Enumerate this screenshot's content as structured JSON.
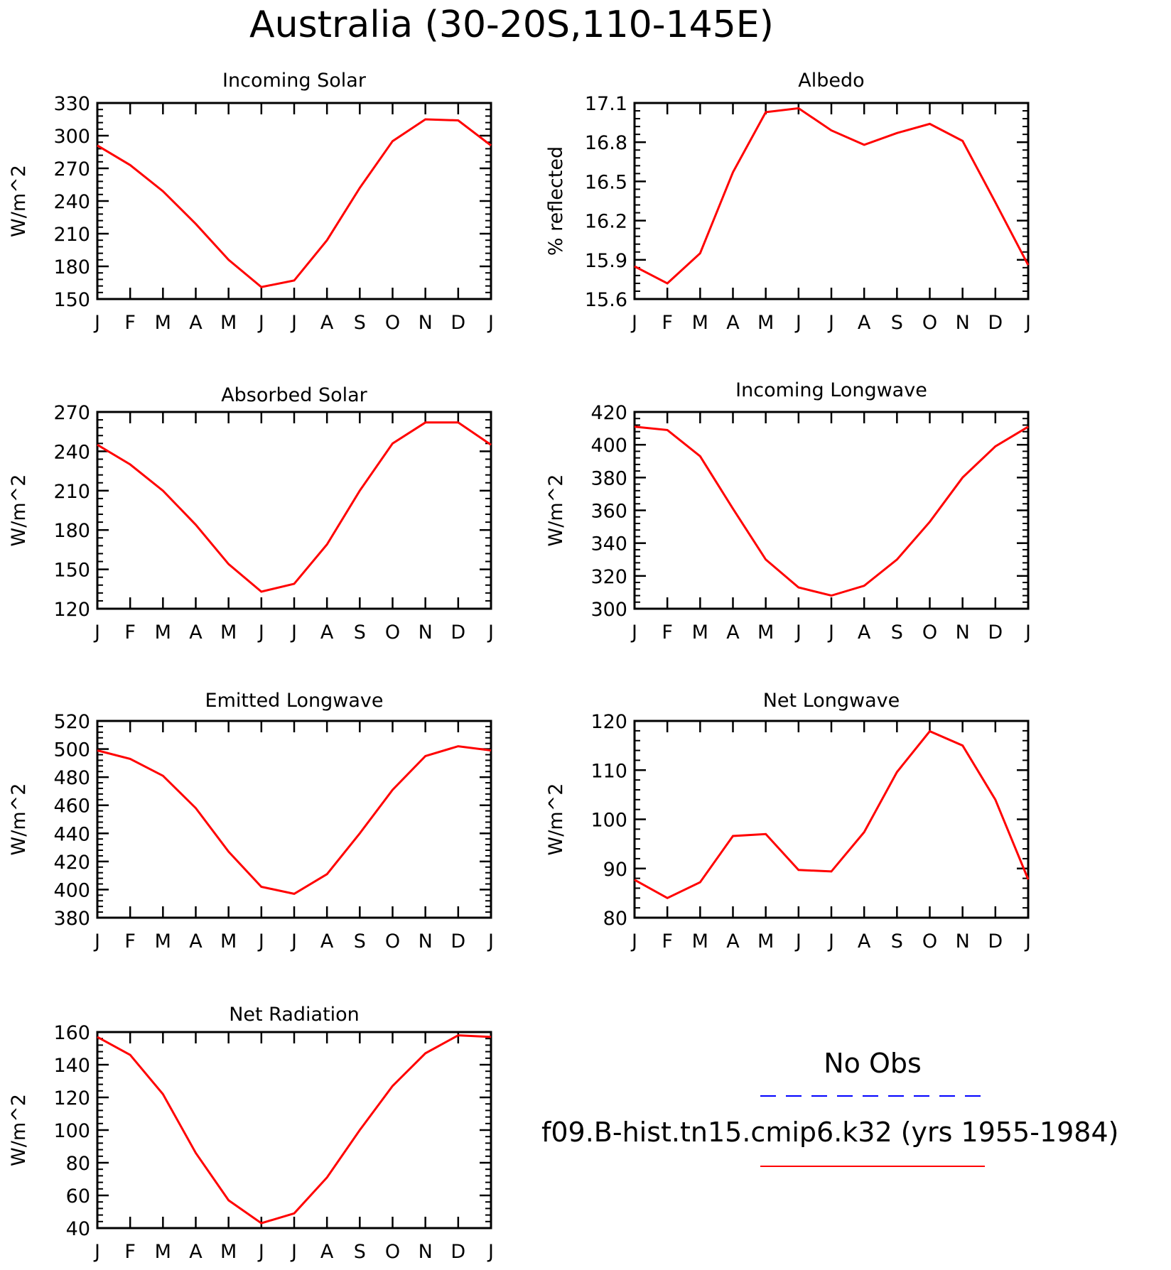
{
  "title": "Australia (30-20S,110-145E)",
  "colors": {
    "model": "#ff0000",
    "obs": "#0000ff",
    "axis": "#000000"
  },
  "legend": {
    "obs_label": "No Obs",
    "model_label": "f09.B-hist.tn15.cmip6.k32 (yrs 1955-1984)"
  },
  "chart_data": [
    {
      "type": "line",
      "title": "Incoming Solar",
      "ylabel": "W/m^2",
      "categories": [
        "J",
        "F",
        "M",
        "A",
        "M",
        "J",
        "J",
        "A",
        "S",
        "O",
        "N",
        "D",
        "J"
      ],
      "ylim": [
        150,
        330
      ],
      "yticks": [
        150,
        180,
        210,
        240,
        270,
        300,
        330
      ],
      "series": [
        {
          "values": [
            291,
            273,
            249,
            219,
            186,
            161,
            167,
            204,
            252,
            295,
            315,
            314,
            291
          ]
        }
      ]
    },
    {
      "type": "line",
      "title": "Albedo",
      "ylabel": "% reflected",
      "categories": [
        "J",
        "F",
        "M",
        "A",
        "M",
        "J",
        "J",
        "A",
        "S",
        "O",
        "N",
        "D",
        "J"
      ],
      "ylim": [
        15.6,
        17.1
      ],
      "yticks": [
        "15.6",
        "15.9",
        "16.2",
        "16.5",
        "16.8",
        "17.1"
      ],
      "series": [
        {
          "values": [
            15.85,
            15.72,
            15.95,
            16.57,
            17.03,
            17.06,
            16.89,
            16.78,
            16.87,
            16.94,
            16.81,
            16.34,
            15.86
          ]
        }
      ]
    },
    {
      "type": "line",
      "title": "Absorbed Solar",
      "ylabel": "W/m^2",
      "categories": [
        "J",
        "F",
        "M",
        "A",
        "M",
        "J",
        "J",
        "A",
        "S",
        "O",
        "N",
        "D",
        "J"
      ],
      "ylim": [
        120,
        270
      ],
      "yticks": [
        120,
        150,
        180,
        210,
        240,
        270
      ],
      "series": [
        {
          "values": [
            245,
            230,
            210,
            184,
            154,
            133,
            139,
            169,
            210,
            246,
            262,
            262,
            245
          ]
        }
      ]
    },
    {
      "type": "line",
      "title": "Incoming Longwave",
      "ylabel": "W/m^2",
      "categories": [
        "J",
        "F",
        "M",
        "A",
        "M",
        "J",
        "J",
        "A",
        "S",
        "O",
        "N",
        "D",
        "J"
      ],
      "ylim": [
        300,
        420
      ],
      "yticks": [
        300,
        320,
        340,
        360,
        380,
        400,
        420
      ],
      "series": [
        {
          "values": [
            411,
            409,
            393,
            361,
            330,
            313,
            308,
            314,
            330,
            353,
            380,
            399,
            411
          ]
        }
      ]
    },
    {
      "type": "line",
      "title": "Emitted Longwave",
      "ylabel": "W/m^2",
      "categories": [
        "J",
        "F",
        "M",
        "A",
        "M",
        "J",
        "J",
        "A",
        "S",
        "O",
        "N",
        "D",
        "J"
      ],
      "ylim": [
        380,
        520
      ],
      "yticks": [
        380,
        400,
        420,
        440,
        460,
        480,
        500,
        520
      ],
      "series": [
        {
          "values": [
            499,
            493,
            481,
            458,
            427,
            402,
            397,
            411,
            440,
            471,
            495,
            502,
            499
          ]
        }
      ]
    },
    {
      "type": "line",
      "title": "Net Longwave",
      "ylabel": "W/m^2",
      "categories": [
        "J",
        "F",
        "M",
        "A",
        "M",
        "J",
        "J",
        "A",
        "S",
        "O",
        "N",
        "D",
        "J"
      ],
      "ylim": [
        80,
        120
      ],
      "yticks": [
        80,
        90,
        100,
        110,
        120
      ],
      "series": [
        {
          "values": [
            87.7,
            84,
            87.2,
            96.6,
            97,
            89.7,
            89.4,
            97.4,
            109.6,
            117.9,
            115,
            104,
            87.8
          ]
        }
      ]
    },
    {
      "type": "line",
      "title": "Net Radiation",
      "ylabel": "W/m^2",
      "categories": [
        "J",
        "F",
        "M",
        "A",
        "M",
        "J",
        "J",
        "A",
        "S",
        "O",
        "N",
        "D",
        "J"
      ],
      "ylim": [
        40,
        160
      ],
      "yticks": [
        40,
        60,
        80,
        100,
        120,
        140,
        160
      ],
      "series": [
        {
          "values": [
            157,
            146,
            122,
            86,
            57,
            43,
            49,
            71,
            100,
            127,
            147,
            158,
            157
          ]
        }
      ]
    }
  ]
}
